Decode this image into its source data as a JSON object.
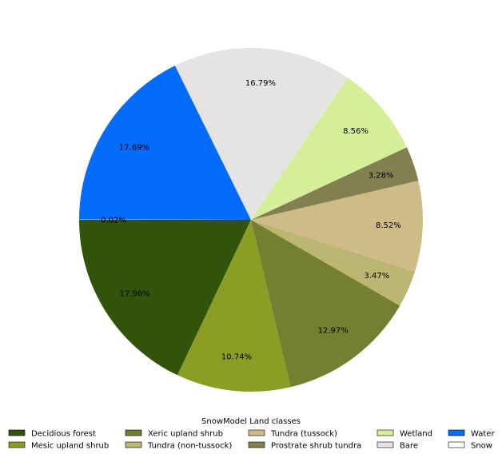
{
  "chart_data": {
    "type": "pie",
    "start_angle_deg": 180,
    "direction": "counterclockwise",
    "legend": {
      "title": "SnowModel Land classes",
      "placement": "bottom",
      "columns": 5
    },
    "slices": [
      {
        "label": "Decidious forest",
        "value": 17.96,
        "pct_text": "17.96%",
        "color": "#31540a"
      },
      {
        "label": "Mesic upland shrub",
        "value": 10.74,
        "pct_text": "10.74%",
        "color": "#8a9e24"
      },
      {
        "label": "Xeric upland shrub",
        "value": 12.97,
        "pct_text": "12.97%",
        "color": "#757f32"
      },
      {
        "label": "Tundra (non-tussock)",
        "value": 3.47,
        "pct_text": "3.47%",
        "color": "#bbb671"
      },
      {
        "label": "Tundra (tussock)",
        "value": 8.52,
        "pct_text": "8.52%",
        "color": "#cfbb87"
      },
      {
        "label": "Prostrate shrub tundra",
        "value": 3.28,
        "pct_text": "3.28%",
        "color": "#827f51"
      },
      {
        "label": "Wetland",
        "value": 8.56,
        "pct_text": "8.56%",
        "color": "#d5ef98"
      },
      {
        "label": "Bare",
        "value": 16.79,
        "pct_text": "16.79%",
        "color": "#e6e4e2"
      },
      {
        "label": "Water",
        "value": 17.69,
        "pct_text": "17.69%",
        "color": "#046cfc"
      },
      {
        "label": "Snow",
        "value": 0.02,
        "pct_text": "0.02%",
        "color": "#ffffff"
      }
    ]
  }
}
